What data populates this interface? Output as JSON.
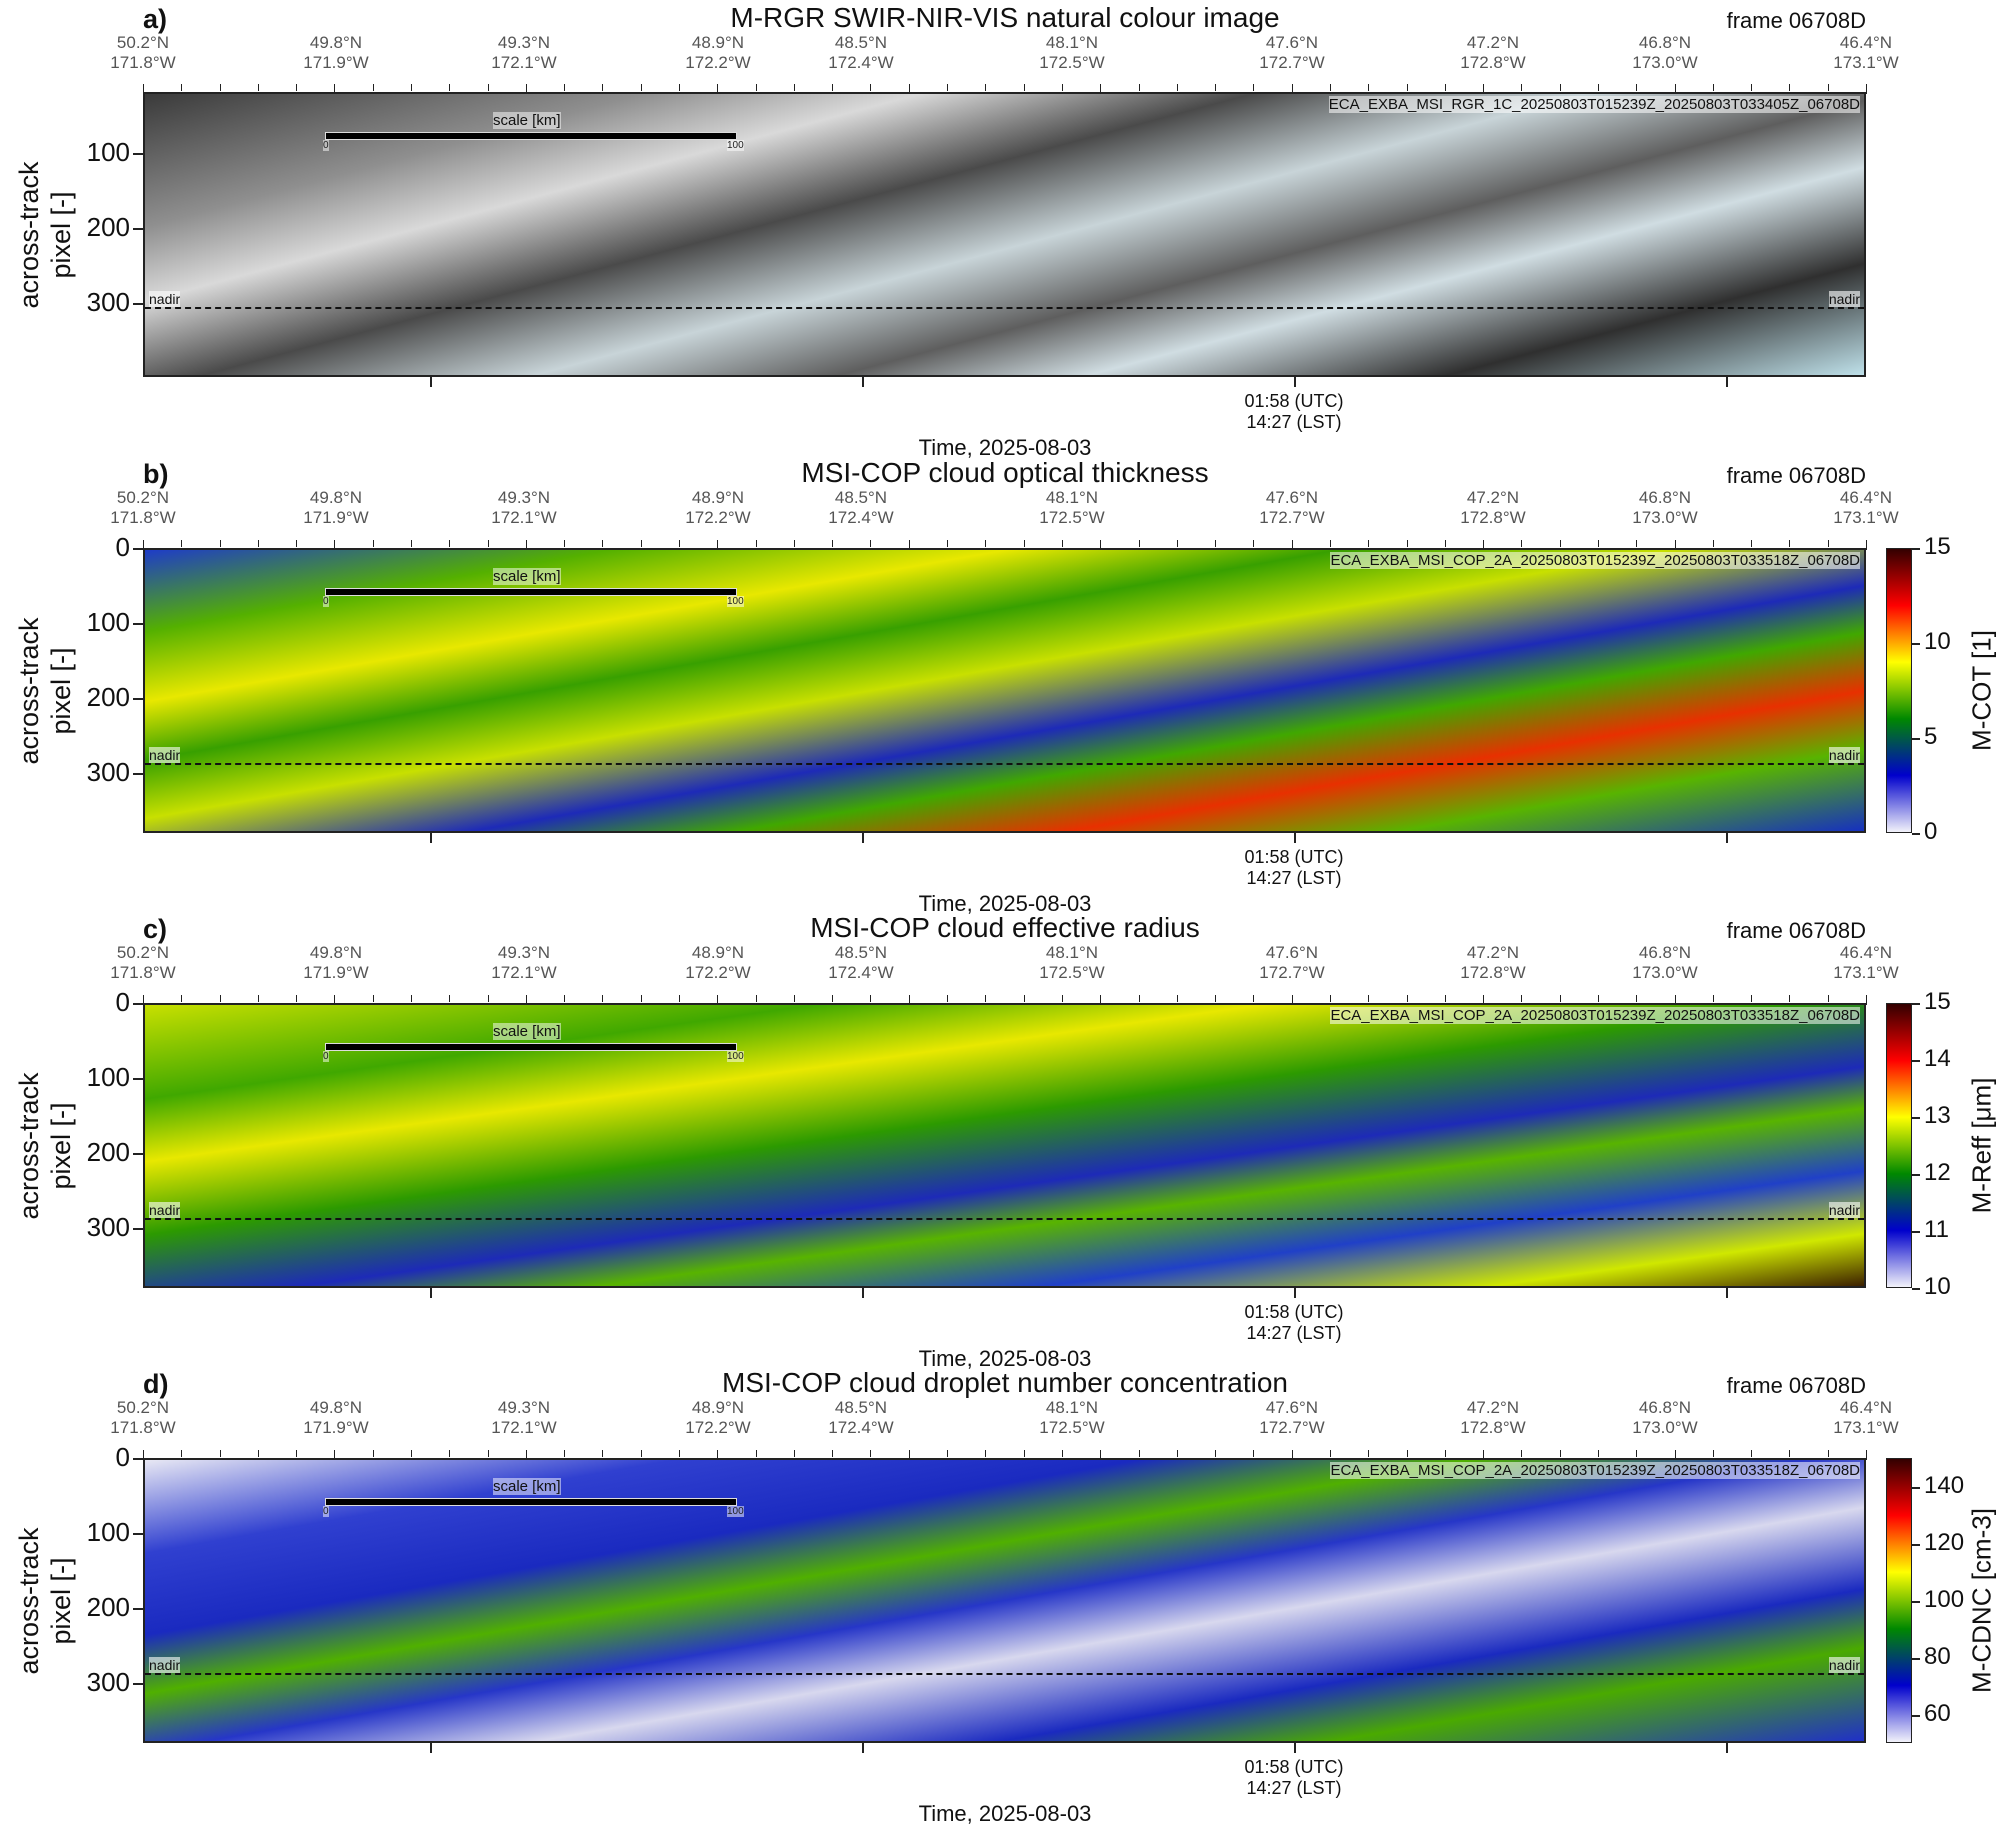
{
  "coords": [
    {
      "lat": "50.2°N",
      "lon": "171.8°W"
    },
    {
      "lat": "49.8°N",
      "lon": "171.9°W"
    },
    {
      "lat": "49.3°N",
      "lon": "172.1°W"
    },
    {
      "lat": "48.9°N",
      "lon": "172.2°W"
    },
    {
      "lat": "48.5°N",
      "lon": "172.4°W"
    },
    {
      "lat": "48.1°N",
      "lon": "172.5°W"
    },
    {
      "lat": "47.6°N",
      "lon": "172.7°W"
    },
    {
      "lat": "47.2°N",
      "lon": "172.8°W"
    },
    {
      "lat": "46.8°N",
      "lon": "173.0°W"
    },
    {
      "lat": "46.4°N",
      "lon": "173.1°W"
    }
  ],
  "common": {
    "frame": "frame 06708D",
    "ylabel_line1": "across-track",
    "ylabel_line2": "pixel [-]",
    "nadir": "nadir",
    "scale_label": "scale [km]",
    "scale_start": "0",
    "scale_end": "100",
    "time_utc": "01:58 (UTC)",
    "time_lst": "14:27 (LST)",
    "xlabel": "Time, 2025-08-03"
  },
  "chart_data": [
    {
      "type": "heatmap",
      "panel": "a)",
      "title": "M-RGR SWIR-NIR-VIS natural colour image",
      "filename": "ECA_EXBA_MSI_RGR_1C_20250803T015239Z_20250803T033405Z_06708D",
      "yticks": [
        "100",
        "200",
        "300"
      ],
      "ylim": [
        0,
        380
      ],
      "nadir_row": 284,
      "colorbar": null
    },
    {
      "type": "heatmap",
      "panel": "b)",
      "title": "MSI-COP cloud optical thickness",
      "filename": "ECA_EXBA_MSI_COP_2A_20250803T015239Z_20250803T033518Z_06708D",
      "yticks": [
        "0",
        "100",
        "200",
        "300"
      ],
      "ylim": [
        0,
        380
      ],
      "nadir_row": 284,
      "colorbar": {
        "label": "M-COT [1]",
        "ticks": [
          "15",
          "10",
          "5",
          "0"
        ],
        "range": [
          0,
          15
        ],
        "colors": [
          "#f2f2fa",
          "#0000cc",
          "#008800",
          "#ffff00",
          "#ff0000",
          "#330000"
        ]
      }
    },
    {
      "type": "heatmap",
      "panel": "c)",
      "title": "MSI-COP cloud effective radius",
      "filename": "ECA_EXBA_MSI_COP_2A_20250803T015239Z_20250803T033518Z_06708D",
      "yticks": [
        "0",
        "100",
        "200",
        "300"
      ],
      "ylim": [
        0,
        380
      ],
      "nadir_row": 284,
      "colorbar": {
        "label": "M-Reff [μm]",
        "ticks": [
          "15",
          "14",
          "13",
          "12",
          "11",
          "10"
        ],
        "range": [
          10,
          15
        ],
        "colors": [
          "#f2f2fa",
          "#0000cc",
          "#008800",
          "#ffff00",
          "#ff0000",
          "#330000"
        ]
      }
    },
    {
      "type": "heatmap",
      "panel": "d)",
      "title": "MSI-COP cloud droplet number concentration",
      "filename": "ECA_EXBA_MSI_COP_2A_20250803T015239Z_20250803T033518Z_06708D",
      "yticks": [
        "0",
        "100",
        "200",
        "300"
      ],
      "ylim": [
        0,
        380
      ],
      "nadir_row": 284,
      "colorbar": {
        "label": "M-CDNC [cm-3]",
        "ticks": [
          "140",
          "120",
          "100",
          "80",
          "60"
        ],
        "range": [
          50,
          150
        ],
        "colors": [
          "#f2f2fa",
          "#0000cc",
          "#008800",
          "#ffff00",
          "#ff0000",
          "#330000"
        ]
      }
    }
  ]
}
